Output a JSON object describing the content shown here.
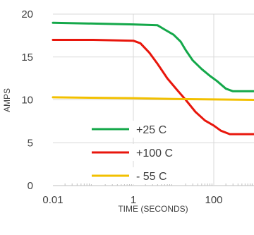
{
  "chart_data": {
    "type": "line",
    "xlabel": "TIME (SECONDS)",
    "ylabel": "AMPS",
    "x_scale": "log",
    "xlim": [
      0.01,
      1000
    ],
    "ylim": [
      0,
      20
    ],
    "x_ticks": [
      {
        "value": 0.01,
        "label": "0.01"
      },
      {
        "value": 1,
        "label": "1"
      },
      {
        "value": 100,
        "label": "100"
      }
    ],
    "y_ticks": [
      {
        "value": 0,
        "label": "0"
      },
      {
        "value": 5,
        "label": "5"
      },
      {
        "value": 10,
        "label": "10"
      },
      {
        "value": 15,
        "label": "15"
      },
      {
        "value": 20,
        "label": "20"
      }
    ],
    "grid": {
      "horizontal": true,
      "vertical": true
    },
    "legend": {
      "placement": "bottom-center"
    },
    "series": [
      {
        "name": "+25 C",
        "color": "#14a84a",
        "points": [
          [
            0.01,
            19.0
          ],
          [
            0.1,
            18.9
          ],
          [
            1,
            18.8
          ],
          [
            4,
            18.7
          ],
          [
            6,
            18.2
          ],
          [
            10,
            17.6
          ],
          [
            15,
            16.8
          ],
          [
            20,
            15.8
          ],
          [
            30,
            14.6
          ],
          [
            50,
            13.6
          ],
          [
            80,
            12.8
          ],
          [
            120,
            12.2
          ],
          [
            200,
            11.3
          ],
          [
            300,
            11.0
          ],
          [
            1000,
            11.0
          ]
        ]
      },
      {
        "name": "+100 C",
        "color": "#e8160c",
        "points": [
          [
            0.01,
            17.0
          ],
          [
            0.1,
            17.0
          ],
          [
            1,
            16.9
          ],
          [
            1.5,
            16.6
          ],
          [
            2.5,
            15.5
          ],
          [
            4,
            14.2
          ],
          [
            7,
            12.5
          ],
          [
            12,
            11.2
          ],
          [
            20,
            10.0
          ],
          [
            35,
            8.6
          ],
          [
            60,
            7.6
          ],
          [
            100,
            7.0
          ],
          [
            150,
            6.4
          ],
          [
            250,
            6.0
          ],
          [
            1000,
            6.0
          ]
        ]
      },
      {
        "name": "- 55 C",
        "color": "#f2c000",
        "points": [
          [
            0.01,
            10.3
          ],
          [
            1,
            10.2
          ],
          [
            10,
            10.1
          ],
          [
            100,
            10.05
          ],
          [
            1000,
            10.0
          ]
        ]
      }
    ]
  }
}
